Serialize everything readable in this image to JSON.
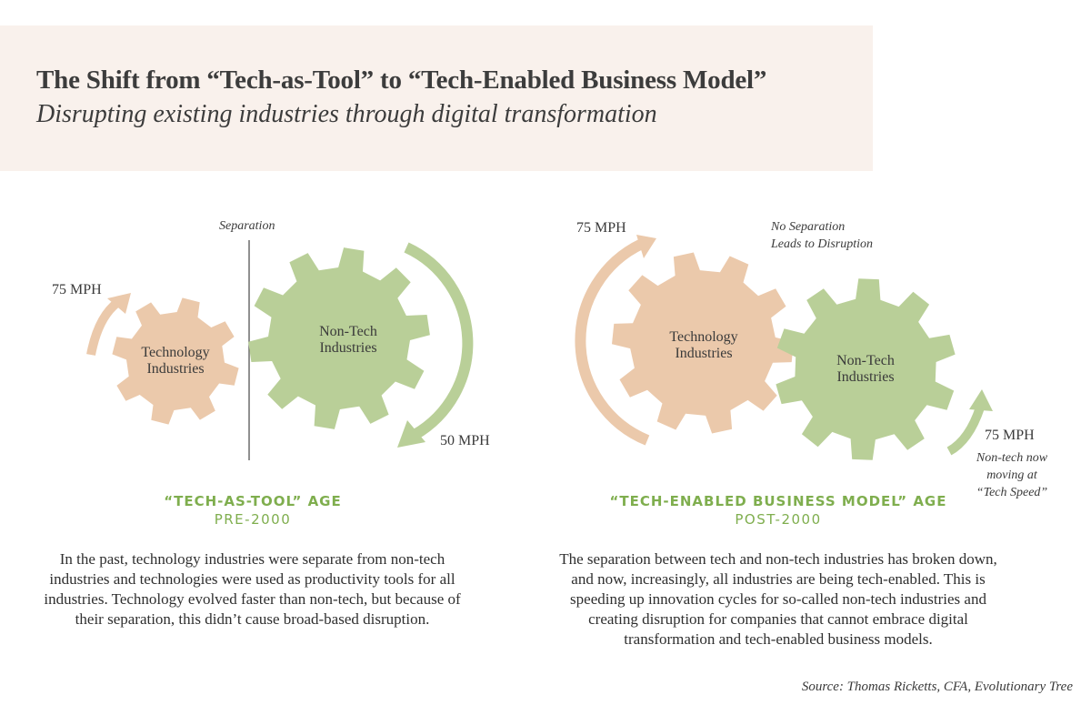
{
  "header": {
    "title": "The Shift from “Tech-as-Tool” to “Tech-Enabled Business Model”",
    "subtitle": "Disrupting existing industries through digital transformation"
  },
  "colors": {
    "banner": "#f9f1ec",
    "tech_gear": "#ebc9ab",
    "nontech_gear": "#b9cf98",
    "accent_green": "#7fae4e"
  },
  "left": {
    "separation_label": "Separation",
    "tech_gear": {
      "line1": "Technology",
      "line2": "Industries"
    },
    "nontech_gear": {
      "line1": "Non-Tech",
      "line2": "Industries"
    },
    "tech_speed": "75 MPH",
    "nontech_speed": "50 MPH",
    "age_title": "“TECH-AS-TOOL” AGE",
    "age_sub": "PRE-2000",
    "description": "In the past, technology industries were separate from non-tech industries and technologies were used as productivity tools for all industries. Technology evolved faster than non-tech, but because of their separation, this didn’t cause broad-based disruption."
  },
  "right": {
    "note_line1": "No Separation",
    "note_line2": "Leads to Disruption",
    "tech_gear": {
      "line1": "Technology",
      "line2": "Industries"
    },
    "nontech_gear": {
      "line1": "Non-Tech",
      "line2": "Industries"
    },
    "tech_speed": "75 MPH",
    "nontech_speed": "75 MPH",
    "nontech_note": {
      "line1": "Non-tech now",
      "line2": "moving at",
      "line3": "“Tech Speed”"
    },
    "age_title": "“TECH-ENABLED BUSINESS MODEL” AGE",
    "age_sub": "POST-2000",
    "description": "The separation between tech and non-tech industries has broken down, and now, increasingly, all industries are being tech-enabled. This is speeding up innovation cycles for so-called non-tech industries and creating disruption for companies that cannot embrace digital transformation and tech-enabled business models."
  },
  "source": "Source: Thomas Ricketts, CFA, Evolutionary Tree"
}
